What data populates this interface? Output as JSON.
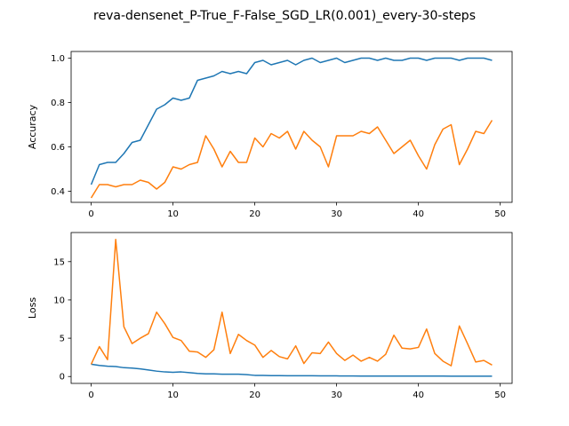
{
  "figure": {
    "suptitle": "reva-densenet_P-True_F-False_SGD_LR(0.001)_every-30-steps"
  },
  "colors": {
    "series_1": "#1f77b4",
    "series_2": "#ff7f0e",
    "axes": "#000000"
  },
  "chart_data": [
    {
      "type": "line",
      "title": "",
      "xlabel": "",
      "ylabel": "Accuracy",
      "xlim": [
        -2.45,
        51.45
      ],
      "ylim": [
        0.35,
        1.03
      ],
      "xticks": [
        0,
        10,
        20,
        30,
        40,
        50
      ],
      "yticks": [
        0.4,
        0.6,
        0.8,
        1.0
      ],
      "ytick_labels": [
        "0.4",
        "0.6",
        "0.8",
        "1.0"
      ],
      "grid": false,
      "x": [
        0,
        1,
        2,
        3,
        4,
        5,
        6,
        7,
        8,
        9,
        10,
        11,
        12,
        13,
        14,
        15,
        16,
        17,
        18,
        19,
        20,
        21,
        22,
        23,
        24,
        25,
        26,
        27,
        28,
        29,
        30,
        31,
        32,
        33,
        34,
        35,
        36,
        37,
        38,
        39,
        40,
        41,
        42,
        43,
        44,
        45,
        46,
        47,
        48,
        49
      ],
      "series": [
        {
          "values": [
            0.43,
            0.52,
            0.53,
            0.53,
            0.57,
            0.62,
            0.63,
            0.7,
            0.77,
            0.79,
            0.82,
            0.81,
            0.82,
            0.9,
            0.91,
            0.92,
            0.94,
            0.93,
            0.94,
            0.93,
            0.98,
            0.99,
            0.97,
            0.98,
            0.99,
            0.97,
            0.99,
            1.0,
            0.98,
            0.99,
            1.0,
            0.98,
            0.99,
            1.0,
            1.0,
            0.99,
            1.0,
            0.99,
            0.99,
            1.0,
            1.0,
            0.99,
            1.0,
            1.0,
            1.0,
            0.99,
            1.0,
            1.0,
            1.0,
            0.99
          ]
        },
        {
          "values": [
            0.37,
            0.43,
            0.43,
            0.42,
            0.43,
            0.43,
            0.45,
            0.44,
            0.41,
            0.44,
            0.51,
            0.5,
            0.52,
            0.53,
            0.65,
            0.59,
            0.51,
            0.58,
            0.53,
            0.53,
            0.64,
            0.6,
            0.66,
            0.64,
            0.67,
            0.59,
            0.67,
            0.63,
            0.6,
            0.51,
            0.65,
            0.65,
            0.65,
            0.67,
            0.66,
            0.69,
            0.63,
            0.57,
            0.6,
            0.63,
            0.56,
            0.5,
            0.61,
            0.68,
            0.7,
            0.52,
            0.59,
            0.67,
            0.66,
            0.72
          ]
        }
      ]
    },
    {
      "type": "line",
      "title": "",
      "xlabel": "",
      "ylabel": "Loss",
      "xlim": [
        -2.45,
        51.45
      ],
      "ylim": [
        -0.9,
        18.8
      ],
      "xticks": [
        0,
        10,
        20,
        30,
        40,
        50
      ],
      "yticks": [
        0,
        5,
        10,
        15
      ],
      "ytick_labels": [
        "0",
        "5",
        "10",
        "15"
      ],
      "grid": false,
      "x": [
        0,
        1,
        2,
        3,
        4,
        5,
        6,
        7,
        8,
        9,
        10,
        11,
        12,
        13,
        14,
        15,
        16,
        17,
        18,
        19,
        20,
        21,
        22,
        23,
        24,
        25,
        26,
        27,
        28,
        29,
        30,
        31,
        32,
        33,
        34,
        35,
        36,
        37,
        38,
        39,
        40,
        41,
        42,
        43,
        44,
        45,
        46,
        47,
        48,
        49
      ],
      "series": [
        {
          "values": [
            1.6,
            1.45,
            1.35,
            1.3,
            1.15,
            1.1,
            1.0,
            0.85,
            0.7,
            0.6,
            0.55,
            0.6,
            0.5,
            0.4,
            0.35,
            0.35,
            0.3,
            0.3,
            0.3,
            0.25,
            0.15,
            0.15,
            0.12,
            0.12,
            0.1,
            0.1,
            0.1,
            0.1,
            0.08,
            0.08,
            0.08,
            0.07,
            0.07,
            0.06,
            0.06,
            0.06,
            0.05,
            0.05,
            0.05,
            0.05,
            0.05,
            0.05,
            0.05,
            0.05,
            0.04,
            0.04,
            0.04,
            0.04,
            0.04,
            0.04
          ]
        },
        {
          "values": [
            1.6,
            3.9,
            2.2,
            17.9,
            6.5,
            4.3,
            5.0,
            5.6,
            8.4,
            6.9,
            5.1,
            4.7,
            3.3,
            3.2,
            2.5,
            3.5,
            8.4,
            3.0,
            5.5,
            4.7,
            4.1,
            2.5,
            3.4,
            2.6,
            2.3,
            4.0,
            1.7,
            3.1,
            3.0,
            4.5,
            3.0,
            2.1,
            2.8,
            2.0,
            2.5,
            2.0,
            2.9,
            5.4,
            3.7,
            3.6,
            3.8,
            6.2,
            3.0,
            2.0,
            1.4,
            6.6,
            4.3,
            1.9,
            2.1,
            1.5
          ]
        }
      ]
    }
  ]
}
